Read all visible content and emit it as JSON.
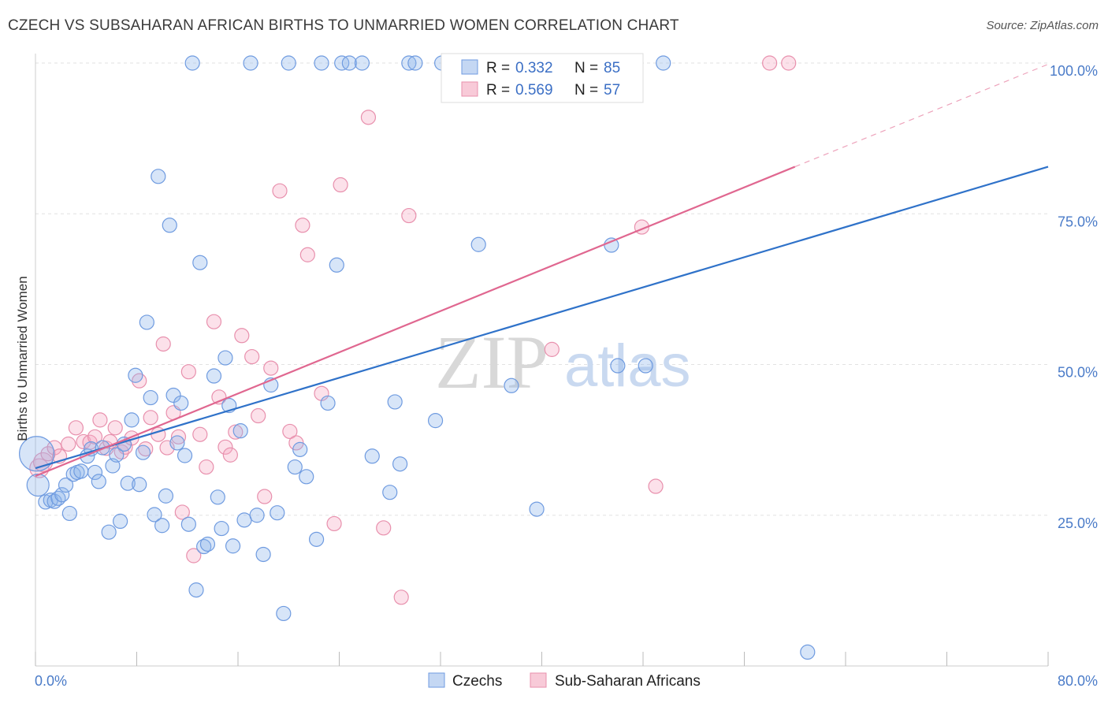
{
  "title": "CZECH VS SUBSAHARAN AFRICAN BIRTHS TO UNMARRIED WOMEN CORRELATION CHART",
  "source": "Source: ZipAtlas.com",
  "watermark": {
    "part1": "ZIP",
    "part2": "atlas"
  },
  "colors": {
    "czechs": "#5b8fd9",
    "czechs_line": "#2f72c9",
    "africans": "#e88aa8",
    "africans_line": "#e06790"
  },
  "legend": {
    "r_label": "R =",
    "n_label": "N =",
    "czechs": {
      "r": "0.332",
      "n": "85"
    },
    "africans": {
      "r": "0.569",
      "n": "57"
    }
  },
  "bottom_legend": {
    "czechs": "Czechs",
    "africans": "Sub-Saharan Africans"
  },
  "chart_data": {
    "type": "scatter",
    "xlabel": "",
    "ylabel": "Births to Unmarried Women",
    "xlim": [
      0,
      80
    ],
    "ylim": [
      0,
      100
    ],
    "x_tick_labels": {
      "min": "0.0%",
      "max": "80.0%"
    },
    "y_tick_labels": [
      {
        "value": 100,
        "label": "100.0%"
      },
      {
        "value": 75,
        "label": "75.0%"
      },
      {
        "value": 50,
        "label": "50.0%"
      },
      {
        "value": 25,
        "label": "25.0%"
      }
    ],
    "grid": true,
    "legend_position": "top-center",
    "series": [
      {
        "name": "Czechs",
        "r": 0.332,
        "n": 85,
        "trend": {
          "x1": 0,
          "y1": 32.8,
          "x2": 80,
          "y2": 82.8
        },
        "points": [
          [
            0.1,
            35.2
          ],
          [
            0.2,
            30
          ],
          [
            0.8,
            27.2
          ],
          [
            1.2,
            27.5
          ],
          [
            1.5,
            27.3
          ],
          [
            1.8,
            27.8
          ],
          [
            2.1,
            28.4
          ],
          [
            2.4,
            30
          ],
          [
            2.7,
            25.3
          ],
          [
            3,
            31.8
          ],
          [
            3.3,
            32.1
          ],
          [
            3.6,
            32.3
          ],
          [
            4.1,
            34.8
          ],
          [
            4.4,
            36
          ],
          [
            4.7,
            32.1
          ],
          [
            5,
            30.6
          ],
          [
            5.3,
            36.2
          ],
          [
            5.8,
            22.2
          ],
          [
            6.1,
            33.2
          ],
          [
            6.4,
            35
          ],
          [
            6.7,
            24
          ],
          [
            7,
            36.8
          ],
          [
            7.3,
            30.3
          ],
          [
            7.6,
            40.8
          ],
          [
            7.9,
            48.2
          ],
          [
            8.2,
            30.1
          ],
          [
            8.5,
            35.4
          ],
          [
            8.8,
            57
          ],
          [
            9.1,
            44.5
          ],
          [
            9.4,
            25.1
          ],
          [
            9.7,
            81.2
          ],
          [
            10,
            23.3
          ],
          [
            10.3,
            28.2
          ],
          [
            10.6,
            73.1
          ],
          [
            10.9,
            44.9
          ],
          [
            11.2,
            37
          ],
          [
            11.5,
            43.6
          ],
          [
            11.8,
            34.9
          ],
          [
            12.1,
            23.5
          ],
          [
            12.4,
            100
          ],
          [
            12.7,
            12.6
          ],
          [
            13,
            66.9
          ],
          [
            13.3,
            19.8
          ],
          [
            13.6,
            20.2
          ],
          [
            14.1,
            48.1
          ],
          [
            14.4,
            28
          ],
          [
            14.7,
            22.8
          ],
          [
            15,
            51.1
          ],
          [
            15.3,
            43.2
          ],
          [
            15.6,
            19.9
          ],
          [
            16.2,
            39
          ],
          [
            16.5,
            24.2
          ],
          [
            17,
            100
          ],
          [
            17.5,
            25
          ],
          [
            18,
            18.5
          ],
          [
            18.6,
            46.6
          ],
          [
            19.1,
            25.4
          ],
          [
            19.6,
            8.7
          ],
          [
            20,
            100
          ],
          [
            20.5,
            33
          ],
          [
            20.9,
            35.9
          ],
          [
            21.4,
            31.4
          ],
          [
            22.2,
            21
          ],
          [
            22.6,
            100
          ],
          [
            23.1,
            43.6
          ],
          [
            23.8,
            66.5
          ],
          [
            24.2,
            100
          ],
          [
            24.8,
            100
          ],
          [
            25.8,
            100
          ],
          [
            26.6,
            34.8
          ],
          [
            28,
            28.8
          ],
          [
            28.4,
            43.8
          ],
          [
            28.8,
            33.5
          ],
          [
            29.5,
            100
          ],
          [
            30,
            100
          ],
          [
            31.6,
            40.7
          ],
          [
            32.1,
            100
          ],
          [
            35,
            69.9
          ],
          [
            37.6,
            46.5
          ],
          [
            39.6,
            26
          ],
          [
            45.5,
            69.8
          ],
          [
            46,
            49.8
          ],
          [
            48.2,
            49.8
          ],
          [
            49.6,
            100
          ],
          [
            61,
            2.3
          ]
        ]
      },
      {
        "name": "Sub-Saharan Africans",
        "r": 0.569,
        "n": 57,
        "trend": {
          "x1": 0,
          "y1": 31.5,
          "x2": 60,
          "y2": 82.8
        },
        "trend_dashed": {
          "x1": 60,
          "y1": 82.8,
          "x2": 80,
          "y2": 99.8
        },
        "points": [
          [
            0.3,
            32.8
          ],
          [
            0.6,
            33.8
          ],
          [
            1,
            35.2
          ],
          [
            1.5,
            36.2
          ],
          [
            1.9,
            34.8
          ],
          [
            2.6,
            36.8
          ],
          [
            3.2,
            39.5
          ],
          [
            3.8,
            37.2
          ],
          [
            4.3,
            37.1
          ],
          [
            4.7,
            38
          ],
          [
            5.1,
            40.8
          ],
          [
            5.6,
            36.1
          ],
          [
            5.9,
            37.2
          ],
          [
            6.3,
            39.5
          ],
          [
            6.8,
            35.5
          ],
          [
            7.1,
            36.3
          ],
          [
            7.6,
            37.8
          ],
          [
            8.2,
            47.3
          ],
          [
            8.7,
            36
          ],
          [
            9.1,
            41.2
          ],
          [
            9.7,
            38.4
          ],
          [
            10.1,
            53.4
          ],
          [
            10.4,
            36.2
          ],
          [
            10.9,
            42
          ],
          [
            11.3,
            38
          ],
          [
            11.6,
            25.5
          ],
          [
            12.1,
            48.8
          ],
          [
            12.5,
            18.3
          ],
          [
            13,
            38.4
          ],
          [
            13.5,
            33
          ],
          [
            14.1,
            57.1
          ],
          [
            14.5,
            44.6
          ],
          [
            15,
            36.3
          ],
          [
            15.4,
            35
          ],
          [
            15.8,
            38.8
          ],
          [
            16.3,
            54.8
          ],
          [
            17.1,
            51.3
          ],
          [
            17.6,
            41.5
          ],
          [
            18.1,
            28.1
          ],
          [
            18.6,
            49.4
          ],
          [
            19.3,
            78.8
          ],
          [
            20.1,
            38.9
          ],
          [
            20.6,
            37
          ],
          [
            21.5,
            68.2
          ],
          [
            21.1,
            73.1
          ],
          [
            22.6,
            45.2
          ],
          [
            23.6,
            23.6
          ],
          [
            24.1,
            79.8
          ],
          [
            26.3,
            91
          ],
          [
            27.5,
            22.9
          ],
          [
            28.9,
            11.4
          ],
          [
            29.5,
            74.7
          ],
          [
            40.8,
            52.5
          ],
          [
            47.9,
            72.8
          ],
          [
            49,
            29.8
          ],
          [
            58,
            100
          ],
          [
            59.5,
            100
          ]
        ]
      }
    ]
  }
}
